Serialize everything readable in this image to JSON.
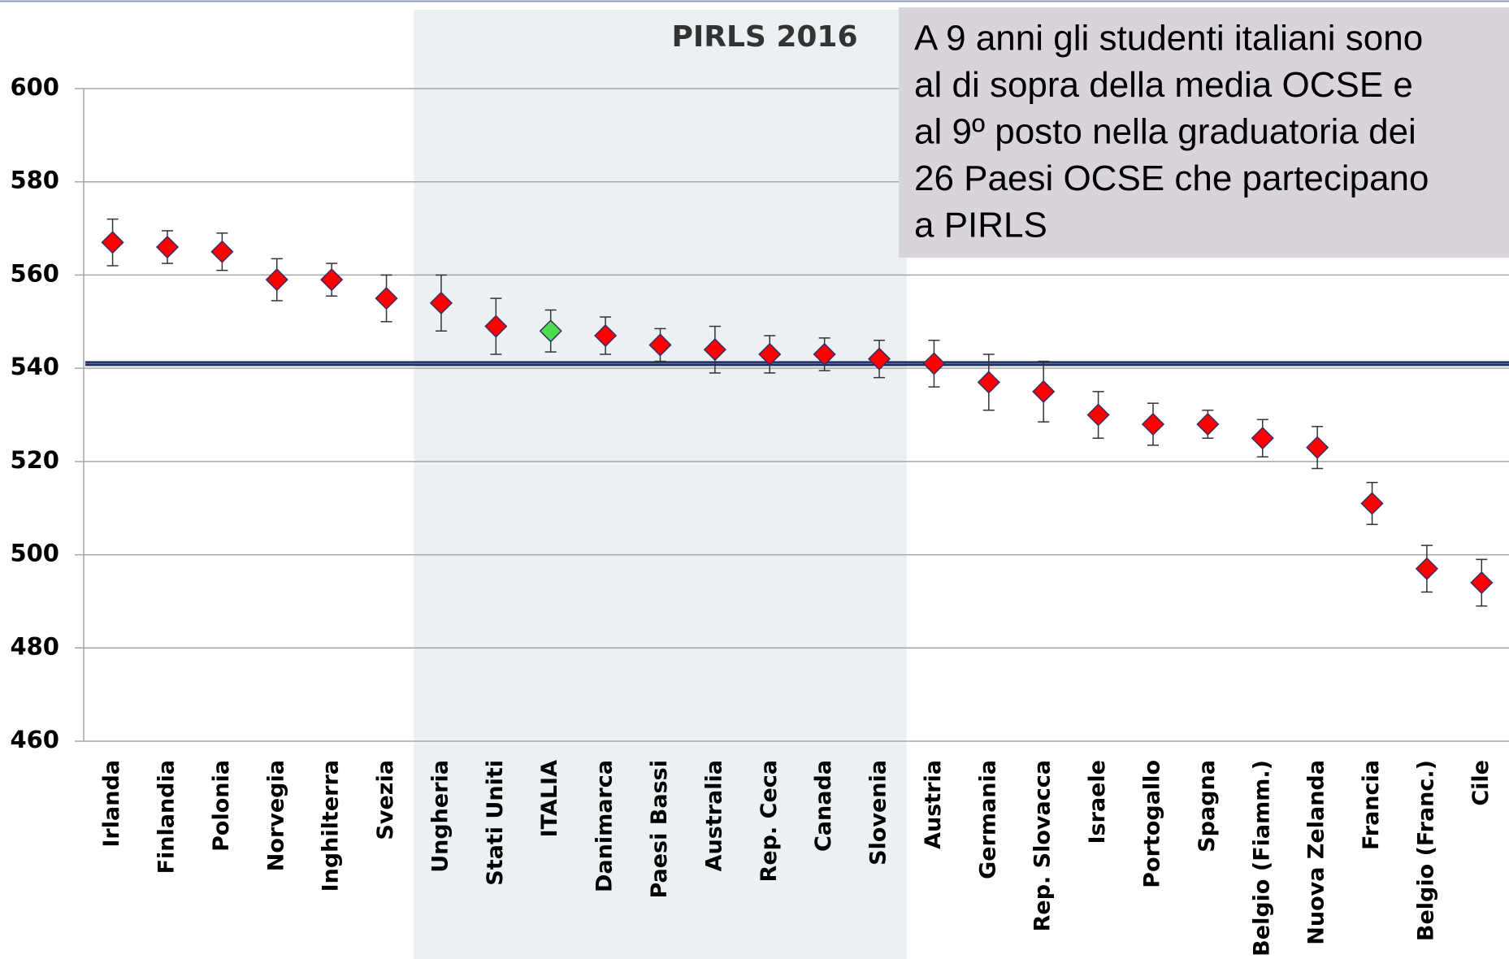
{
  "chart_data": {
    "type": "errorbar-scatter",
    "title": "PIRLS 2016",
    "annotation_lines": [
      "A 9 anni gli studenti italiani sono",
      "al di sopra della media OCSE e",
      "al 9º posto nella graduatoria dei",
      "26 Paesi OCSE che partecipano",
      "a PIRLS"
    ],
    "categories": [
      "Irlanda",
      "Finlandia",
      "Polonia",
      "Norvegia",
      "Inghilterra",
      "Svezia",
      "Ungheria",
      "Stati Uniti",
      "ITALIA",
      "Danimarca",
      "Paesi Bassi",
      "Australia",
      "Rep. Ceca",
      "Canada",
      "Slovenia",
      "Austria",
      "Germania",
      "Rep. Slovacca",
      "Israele",
      "Portogallo",
      "Spagna",
      "Belgio (Fiamm.)",
      "Nuova Zelanda",
      "Francia",
      "Belgio (Franc.)",
      "Cile"
    ],
    "values": [
      567,
      566,
      565,
      559,
      559,
      555,
      554,
      549,
      548,
      547,
      545,
      544,
      543,
      543,
      542,
      541,
      537,
      535,
      530,
      528,
      528,
      525,
      523,
      511,
      497,
      494
    ],
    "errors": [
      5,
      3.5,
      4,
      4.5,
      3.5,
      5,
      6,
      6,
      4.5,
      4,
      3.5,
      5,
      4,
      3.5,
      4,
      5,
      6,
      6.5,
      5,
      4.5,
      3,
      4,
      4.5,
      4.5,
      5,
      5
    ],
    "colors": [
      "#ff0000",
      "#ff0000",
      "#ff0000",
      "#ff0000",
      "#ff0000",
      "#ff0000",
      "#ff0000",
      "#ff0000",
      "#4cdc4c",
      "#ff0000",
      "#ff0000",
      "#ff0000",
      "#ff0000",
      "#ff0000",
      "#ff0000",
      "#ff0000",
      "#ff0000",
      "#ff0000",
      "#ff0000",
      "#ff0000",
      "#ff0000",
      "#ff0000",
      "#ff0000",
      "#ff0000",
      "#ff0000",
      "#ff0000"
    ],
    "reference_line": 541,
    "shaded_range": [
      "Ungheria",
      "Slovenia"
    ],
    "ylim": [
      460,
      600
    ],
    "yticks": [
      460,
      480,
      500,
      520,
      540,
      560,
      580,
      600
    ],
    "grid": true
  }
}
